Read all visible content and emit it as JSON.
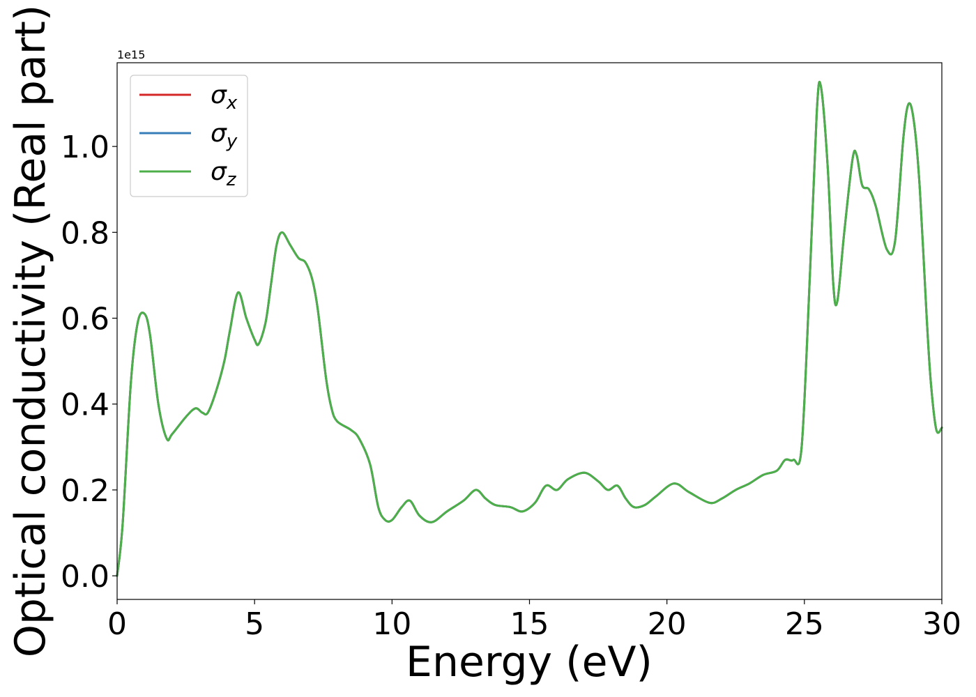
{
  "chart_data": {
    "type": "line",
    "xlabel": "Energy (eV)",
    "ylabel": "Optical conductivity (Real part)",
    "y_offset_label": "1e15",
    "xlim": [
      0,
      30
    ],
    "ylim": [
      -0.055,
      1.195
    ],
    "x_ticks": [
      0,
      5,
      10,
      15,
      20,
      25,
      30
    ],
    "x_tick_labels": [
      "0",
      "5",
      "10",
      "15",
      "20",
      "25",
      "30"
    ],
    "y_ticks": [
      0.0,
      0.2,
      0.4,
      0.6,
      0.8,
      1.0
    ],
    "y_tick_labels": [
      "0.0",
      "0.2",
      "0.4",
      "0.6",
      "0.8",
      "1.0"
    ],
    "grid": false,
    "legend_position": "top-left",
    "series": [
      {
        "name": "σx",
        "symbol": "σ",
        "subscript": "x",
        "color": "#d62728",
        "x": [
          0,
          0.2,
          0.5,
          0.75,
          1.0,
          1.2,
          1.5,
          1.8,
          2.0,
          2.5,
          2.85,
          3.1,
          3.3,
          3.6,
          3.9,
          4.1,
          4.4,
          4.7,
          5.0,
          5.15,
          5.4,
          5.6,
          5.8,
          6.0,
          6.3,
          6.6,
          6.85,
          7.1,
          7.3,
          7.6,
          7.8,
          8.0,
          8.5,
          8.8,
          9.2,
          9.5,
          9.75,
          10.0,
          10.35,
          10.65,
          11.0,
          11.45,
          12.0,
          12.6,
          13.05,
          13.4,
          13.75,
          14.3,
          14.75,
          15.2,
          15.6,
          16.0,
          16.4,
          17.0,
          17.5,
          17.85,
          18.2,
          18.5,
          18.8,
          19.2,
          19.6,
          20.25,
          20.8,
          21.55,
          22.0,
          22.5,
          23.0,
          23.5,
          24.0,
          24.3,
          24.6,
          24.9,
          25.2,
          25.45,
          25.6,
          25.85,
          26.05,
          26.2,
          26.45,
          26.75,
          26.9,
          27.1,
          27.35,
          27.6,
          28.0,
          28.3,
          28.6,
          28.8,
          29.0,
          29.2,
          29.45,
          29.6,
          29.8,
          30.0
        ],
        "y": [
          0.0,
          0.12,
          0.45,
          0.59,
          0.61,
          0.56,
          0.4,
          0.32,
          0.33,
          0.37,
          0.39,
          0.38,
          0.38,
          0.43,
          0.5,
          0.57,
          0.66,
          0.6,
          0.55,
          0.54,
          0.59,
          0.68,
          0.77,
          0.8,
          0.77,
          0.74,
          0.73,
          0.69,
          0.62,
          0.46,
          0.39,
          0.36,
          0.34,
          0.32,
          0.26,
          0.16,
          0.13,
          0.13,
          0.16,
          0.175,
          0.14,
          0.125,
          0.15,
          0.175,
          0.2,
          0.18,
          0.165,
          0.16,
          0.15,
          0.17,
          0.21,
          0.2,
          0.225,
          0.24,
          0.22,
          0.2,
          0.21,
          0.18,
          0.16,
          0.165,
          0.185,
          0.215,
          0.195,
          0.17,
          0.18,
          0.2,
          0.215,
          0.235,
          0.245,
          0.27,
          0.27,
          0.3,
          0.7,
          1.08,
          1.14,
          0.95,
          0.68,
          0.64,
          0.8,
          0.97,
          0.98,
          0.91,
          0.9,
          0.86,
          0.76,
          0.78,
          1.02,
          1.1,
          1.05,
          0.9,
          0.6,
          0.45,
          0.34,
          0.345
        ]
      },
      {
        "name": "σy",
        "symbol": "σ",
        "subscript": "y",
        "color": "#377eb8",
        "x": [
          0,
          0.2,
          0.5,
          0.75,
          1.0,
          1.2,
          1.5,
          1.8,
          2.0,
          2.5,
          2.85,
          3.1,
          3.3,
          3.6,
          3.9,
          4.1,
          4.4,
          4.7,
          5.0,
          5.15,
          5.4,
          5.6,
          5.8,
          6.0,
          6.3,
          6.6,
          6.85,
          7.1,
          7.3,
          7.6,
          7.8,
          8.0,
          8.5,
          8.8,
          9.2,
          9.5,
          9.75,
          10.0,
          10.35,
          10.65,
          11.0,
          11.45,
          12.0,
          12.6,
          13.05,
          13.4,
          13.75,
          14.3,
          14.75,
          15.2,
          15.6,
          16.0,
          16.4,
          17.0,
          17.5,
          17.85,
          18.2,
          18.5,
          18.8,
          19.2,
          19.6,
          20.25,
          20.8,
          21.55,
          22.0,
          22.5,
          23.0,
          23.5,
          24.0,
          24.3,
          24.6,
          24.9,
          25.2,
          25.45,
          25.6,
          25.85,
          26.05,
          26.2,
          26.45,
          26.75,
          26.9,
          27.1,
          27.35,
          27.6,
          28.0,
          28.3,
          28.6,
          28.8,
          29.0,
          29.2,
          29.45,
          29.6,
          29.8,
          30.0
        ],
        "y": [
          0.0,
          0.12,
          0.45,
          0.59,
          0.61,
          0.56,
          0.4,
          0.32,
          0.33,
          0.37,
          0.39,
          0.38,
          0.38,
          0.43,
          0.5,
          0.57,
          0.66,
          0.6,
          0.55,
          0.54,
          0.59,
          0.68,
          0.77,
          0.8,
          0.77,
          0.74,
          0.73,
          0.69,
          0.62,
          0.46,
          0.39,
          0.36,
          0.34,
          0.32,
          0.26,
          0.16,
          0.13,
          0.13,
          0.16,
          0.175,
          0.14,
          0.125,
          0.15,
          0.175,
          0.2,
          0.18,
          0.165,
          0.16,
          0.15,
          0.17,
          0.21,
          0.2,
          0.225,
          0.24,
          0.22,
          0.2,
          0.21,
          0.18,
          0.16,
          0.165,
          0.185,
          0.215,
          0.195,
          0.17,
          0.18,
          0.2,
          0.215,
          0.235,
          0.245,
          0.27,
          0.27,
          0.3,
          0.7,
          1.08,
          1.14,
          0.95,
          0.68,
          0.64,
          0.8,
          0.97,
          0.98,
          0.91,
          0.9,
          0.86,
          0.76,
          0.78,
          1.02,
          1.1,
          1.05,
          0.9,
          0.6,
          0.45,
          0.34,
          0.345
        ]
      },
      {
        "name": "σz",
        "symbol": "σ",
        "subscript": "z",
        "color": "#4daf4a",
        "x": [
          0,
          0.2,
          0.5,
          0.75,
          1.0,
          1.2,
          1.5,
          1.8,
          2.0,
          2.5,
          2.85,
          3.1,
          3.3,
          3.6,
          3.9,
          4.1,
          4.4,
          4.7,
          5.0,
          5.15,
          5.4,
          5.6,
          5.8,
          6.0,
          6.3,
          6.6,
          6.85,
          7.1,
          7.3,
          7.6,
          7.8,
          8.0,
          8.5,
          8.8,
          9.2,
          9.5,
          9.75,
          10.0,
          10.35,
          10.65,
          11.0,
          11.45,
          12.0,
          12.6,
          13.05,
          13.4,
          13.75,
          14.3,
          14.75,
          15.2,
          15.6,
          16.0,
          16.4,
          17.0,
          17.5,
          17.85,
          18.2,
          18.5,
          18.8,
          19.2,
          19.6,
          20.25,
          20.8,
          21.55,
          22.0,
          22.5,
          23.0,
          23.5,
          24.0,
          24.3,
          24.6,
          24.9,
          25.2,
          25.45,
          25.6,
          25.85,
          26.05,
          26.2,
          26.45,
          26.75,
          26.9,
          27.1,
          27.35,
          27.6,
          28.0,
          28.3,
          28.6,
          28.8,
          29.0,
          29.2,
          29.45,
          29.6,
          29.8,
          30.0
        ],
        "y": [
          0.0,
          0.12,
          0.45,
          0.59,
          0.61,
          0.56,
          0.4,
          0.32,
          0.33,
          0.37,
          0.39,
          0.38,
          0.38,
          0.43,
          0.5,
          0.57,
          0.66,
          0.6,
          0.55,
          0.54,
          0.59,
          0.68,
          0.77,
          0.8,
          0.77,
          0.74,
          0.73,
          0.69,
          0.62,
          0.46,
          0.39,
          0.36,
          0.34,
          0.32,
          0.26,
          0.16,
          0.13,
          0.13,
          0.16,
          0.175,
          0.14,
          0.125,
          0.15,
          0.175,
          0.2,
          0.18,
          0.165,
          0.16,
          0.15,
          0.17,
          0.21,
          0.2,
          0.225,
          0.24,
          0.22,
          0.2,
          0.21,
          0.18,
          0.16,
          0.165,
          0.185,
          0.215,
          0.195,
          0.17,
          0.18,
          0.2,
          0.215,
          0.235,
          0.245,
          0.27,
          0.27,
          0.3,
          0.7,
          1.08,
          1.14,
          0.95,
          0.68,
          0.64,
          0.8,
          0.97,
          0.98,
          0.91,
          0.9,
          0.86,
          0.76,
          0.78,
          1.02,
          1.1,
          1.05,
          0.9,
          0.6,
          0.45,
          0.34,
          0.345
        ]
      }
    ]
  }
}
